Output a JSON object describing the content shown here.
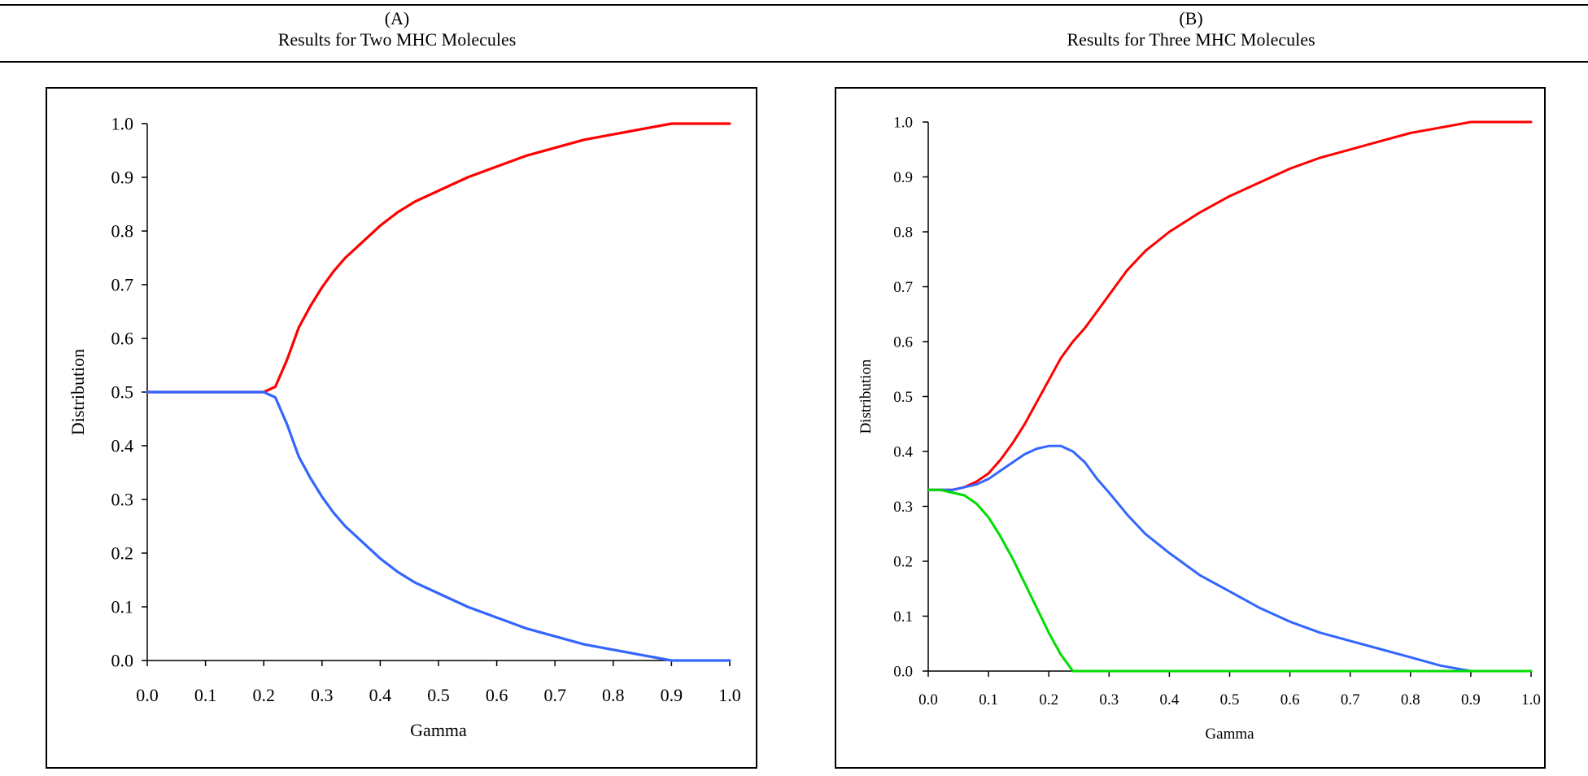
{
  "panels": [
    {
      "letter": "(A)",
      "title": "Results for Two MHC Molecules"
    },
    {
      "letter": "(B)",
      "title": "Results for Three MHC Molecules"
    }
  ],
  "chart_data": [
    {
      "type": "line",
      "title": "Results for Two MHC Molecules",
      "xlabel": "Gamma",
      "ylabel": "Distribution",
      "xlim": [
        0,
        1
      ],
      "ylim": [
        0,
        1
      ],
      "xticks": [
        "0.0",
        "0.1",
        "0.2",
        "0.3",
        "0.4",
        "0.5",
        "0.6",
        "0.7",
        "0.8",
        "0.9",
        "1.0"
      ],
      "yticks": [
        "0.0",
        "0.1",
        "0.2",
        "0.3",
        "0.4",
        "0.5",
        "0.6",
        "0.7",
        "0.8",
        "0.9",
        "1.0"
      ],
      "grid": false,
      "series": [
        {
          "color": "#ff0000",
          "x": [
            0,
            0.05,
            0.1,
            0.15,
            0.2,
            0.22,
            0.24,
            0.26,
            0.28,
            0.3,
            0.32,
            0.34,
            0.36,
            0.38,
            0.4,
            0.43,
            0.46,
            0.5,
            0.55,
            0.6,
            0.65,
            0.7,
            0.75,
            0.8,
            0.85,
            0.9,
            0.95,
            1.0
          ],
          "y": [
            0.5,
            0.5,
            0.5,
            0.5,
            0.5,
            0.51,
            0.56,
            0.62,
            0.66,
            0.695,
            0.725,
            0.75,
            0.77,
            0.79,
            0.81,
            0.835,
            0.855,
            0.875,
            0.9,
            0.92,
            0.94,
            0.955,
            0.97,
            0.98,
            0.99,
            1.0,
            1.0,
            1.0
          ]
        },
        {
          "color": "#3366ff",
          "x": [
            0,
            0.05,
            0.1,
            0.15,
            0.2,
            0.22,
            0.24,
            0.26,
            0.28,
            0.3,
            0.32,
            0.34,
            0.36,
            0.38,
            0.4,
            0.43,
            0.46,
            0.5,
            0.55,
            0.6,
            0.65,
            0.7,
            0.75,
            0.8,
            0.85,
            0.9,
            0.95,
            1.0
          ],
          "y": [
            0.5,
            0.5,
            0.5,
            0.5,
            0.5,
            0.49,
            0.44,
            0.38,
            0.34,
            0.305,
            0.275,
            0.25,
            0.23,
            0.21,
            0.19,
            0.165,
            0.145,
            0.125,
            0.1,
            0.08,
            0.06,
            0.045,
            0.03,
            0.02,
            0.01,
            0.0,
            0.0,
            0.0
          ]
        }
      ]
    },
    {
      "type": "line",
      "title": "Results for Three MHC Molecules",
      "xlabel": "Gamma",
      "ylabel": "Distribution",
      "xlim": [
        0,
        1
      ],
      "ylim": [
        0,
        1
      ],
      "xticks": [
        "0.0",
        "0.1",
        "0.2",
        "0.3",
        "0.4",
        "0.5",
        "0.6",
        "0.7",
        "0.8",
        "0.9",
        "1.0"
      ],
      "yticks": [
        "0.0",
        "0.1",
        "0.2",
        "0.3",
        "0.4",
        "0.5",
        "0.6",
        "0.7",
        "0.8",
        "0.9",
        "1.0"
      ],
      "grid": false,
      "series": [
        {
          "color": "#ff0000",
          "x": [
            0,
            0.02,
            0.04,
            0.06,
            0.08,
            0.1,
            0.12,
            0.14,
            0.16,
            0.18,
            0.2,
            0.22,
            0.24,
            0.26,
            0.28,
            0.3,
            0.33,
            0.36,
            0.4,
            0.45,
            0.5,
            0.55,
            0.6,
            0.65,
            0.7,
            0.75,
            0.8,
            0.85,
            0.9,
            0.95,
            1.0
          ],
          "y": [
            0.33,
            0.33,
            0.33,
            0.335,
            0.345,
            0.36,
            0.385,
            0.415,
            0.45,
            0.49,
            0.53,
            0.57,
            0.6,
            0.625,
            0.655,
            0.685,
            0.73,
            0.765,
            0.8,
            0.835,
            0.865,
            0.89,
            0.915,
            0.935,
            0.95,
            0.965,
            0.98,
            0.99,
            1.0,
            1.0,
            1.0
          ]
        },
        {
          "color": "#3366ff",
          "x": [
            0,
            0.02,
            0.04,
            0.06,
            0.08,
            0.1,
            0.12,
            0.14,
            0.16,
            0.18,
            0.2,
            0.22,
            0.24,
            0.26,
            0.28,
            0.3,
            0.33,
            0.36,
            0.4,
            0.45,
            0.5,
            0.55,
            0.6,
            0.65,
            0.7,
            0.75,
            0.8,
            0.85,
            0.9,
            0.95,
            1.0
          ],
          "y": [
            0.33,
            0.33,
            0.33,
            0.335,
            0.34,
            0.35,
            0.365,
            0.38,
            0.395,
            0.405,
            0.41,
            0.41,
            0.4,
            0.38,
            0.35,
            0.325,
            0.285,
            0.25,
            0.215,
            0.175,
            0.145,
            0.115,
            0.09,
            0.07,
            0.055,
            0.04,
            0.025,
            0.01,
            0.0,
            0.0,
            0.0
          ]
        },
        {
          "color": "#00dd00",
          "x": [
            0,
            0.02,
            0.04,
            0.06,
            0.08,
            0.1,
            0.12,
            0.14,
            0.16,
            0.18,
            0.2,
            0.22,
            0.24,
            0.26,
            0.3,
            0.4,
            0.5,
            0.6,
            0.7,
            0.8,
            0.9,
            0.95,
            1.0
          ],
          "y": [
            0.33,
            0.33,
            0.325,
            0.32,
            0.305,
            0.28,
            0.245,
            0.205,
            0.16,
            0.115,
            0.07,
            0.03,
            0.0,
            0.0,
            0.0,
            0.0,
            0.0,
            0.0,
            0.0,
            0.0,
            0.0,
            0.0,
            0.0
          ]
        }
      ]
    }
  ]
}
